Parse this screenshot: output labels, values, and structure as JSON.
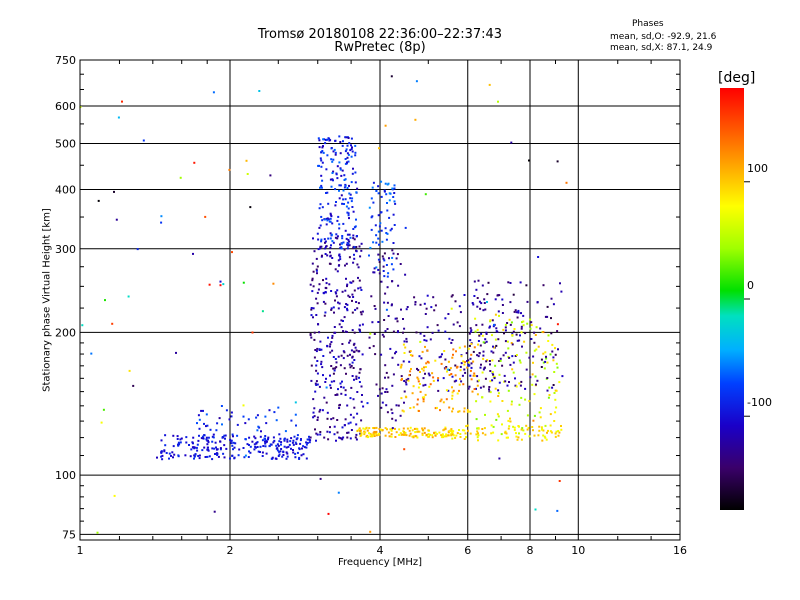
{
  "chart_data": {
    "type": "scatter",
    "title": "Tromsø 20180108 22:36:00–22:37:43",
    "subtitle": "RwPretec (8p)",
    "xlabel": "Frequency [MHz]",
    "ylabel": "Stationary phase Virtual Height [km]",
    "x_scale": "log",
    "y_scale": "log",
    "xlim": [
      1,
      16
    ],
    "ylim": [
      73,
      750
    ],
    "xticks": [
      "1",
      "2",
      "4",
      "6",
      "8",
      "10",
      "16"
    ],
    "yticks": [
      "75",
      "100",
      "200",
      "300",
      "400",
      "500",
      "600",
      "750"
    ],
    "grid": true,
    "colorbar": {
      "label": "[deg]",
      "range": [
        -180,
        180
      ],
      "ticks": [
        "100",
        "0",
        "-100"
      ]
    },
    "phases_legend": {
      "title": "Phases",
      "o_line": "mean, sd,O: -92.9, 21.6",
      "x_line": "mean, sd,X: 87.1, 24.9"
    },
    "clusters": [
      {
        "x": [
          1.45,
          2.9
        ],
        "y": [
          108,
          122
        ],
        "n": 240,
        "phase": [
          -115,
          -80
        ]
      },
      {
        "x": [
          1.7,
          2.8
        ],
        "y": [
          114,
          140
        ],
        "n": 60,
        "phase": [
          -110,
          -60
        ]
      },
      {
        "x": [
          2.9,
          3.7
        ],
        "y": [
          118,
          320
        ],
        "n": 340,
        "phase": [
          -150,
          -95
        ]
      },
      {
        "x": [
          3.0,
          3.6
        ],
        "y": [
          300,
          520
        ],
        "n": 200,
        "phase": [
          -120,
          -60
        ]
      },
      {
        "x": [
          3.8,
          4.3
        ],
        "y": [
          260,
          420
        ],
        "n": 70,
        "phase": [
          -100,
          -50
        ]
      },
      {
        "x": [
          3.8,
          4.5
        ],
        "y": [
          130,
          300
        ],
        "n": 90,
        "phase": [
          -150,
          -110
        ]
      },
      {
        "x": [
          3.6,
          5.7
        ],
        "y": [
          120,
          126
        ],
        "n": 140,
        "phase": [
          70,
          120
        ]
      },
      {
        "x": [
          4.4,
          7.7
        ],
        "y": [
          150,
          240
        ],
        "n": 160,
        "phase": [
          -150,
          -100
        ]
      },
      {
        "x": [
          4.4,
          6.2
        ],
        "y": [
          135,
          190
        ],
        "n": 120,
        "phase": [
          80,
          140
        ]
      },
      {
        "x": [
          6.2,
          9.2
        ],
        "y": [
          120,
          220
        ],
        "n": 150,
        "phase": [
          30,
          110
        ]
      },
      {
        "x": [
          6.0,
          9.3
        ],
        "y": [
          150,
          260
        ],
        "n": 110,
        "phase": [
          -160,
          -110
        ]
      },
      {
        "x": [
          5.5,
          9.3
        ],
        "y": [
          118,
          128
        ],
        "n": 70,
        "phase": [
          70,
          110
        ]
      },
      {
        "x": [
          1.0,
          9.5
        ],
        "y": [
          75,
          700
        ],
        "n": 90,
        "phase": [
          -180,
          180
        ]
      }
    ]
  }
}
